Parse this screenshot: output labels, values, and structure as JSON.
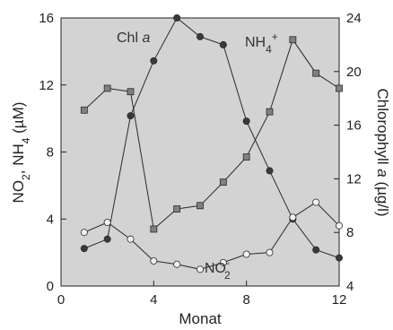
{
  "chart_data": {
    "type": "line",
    "x_axis": {
      "label": "Monat",
      "ticks": [
        0,
        4,
        8,
        12
      ],
      "range": [
        0,
        12
      ]
    },
    "y_left": {
      "label": "NO2, NH4 (µM)",
      "ticks": [
        0,
        4,
        8,
        12,
        16
      ],
      "range": [
        0,
        16
      ]
    },
    "y_right": {
      "label": "Chlorophyll a (µg/l)",
      "ticks": [
        4,
        8,
        12,
        16,
        20,
        24
      ],
      "range": [
        4,
        24
      ]
    },
    "grid": false,
    "background": "#d3d3d3",
    "annotations": {
      "chl": "Chl a",
      "nh4": "NH4+",
      "no2": "NO2-"
    },
    "series": [
      {
        "key": "nh4",
        "axis": "left",
        "marker": "square",
        "color": "#808080",
        "x": [
          1,
          2,
          3,
          4,
          5,
          6,
          7,
          8,
          9,
          10,
          11,
          12
        ],
        "y": [
          10.5,
          11.8,
          11.6,
          3.4,
          4.6,
          4.8,
          6.2,
          7.7,
          10.4,
          14.7,
          12.7,
          11.8
        ]
      },
      {
        "key": "chl",
        "axis": "right",
        "marker": "circle",
        "color": "#3a3a3a",
        "x": [
          1,
          2,
          3,
          4,
          5,
          6,
          7,
          8,
          9,
          10,
          11,
          12
        ],
        "y": [
          6.8,
          7.5,
          16.7,
          20.8,
          24.0,
          22.6,
          22.0,
          16.3,
          12.6,
          9.0,
          6.7,
          6.1
        ]
      },
      {
        "key": "no2",
        "axis": "left",
        "marker": "circle",
        "color": "#f2f2f2",
        "x": [
          1,
          2,
          3,
          4,
          5,
          6,
          7,
          8,
          9,
          10,
          11,
          12
        ],
        "y": [
          3.2,
          3.8,
          2.8,
          1.5,
          1.3,
          1.0,
          1.4,
          1.9,
          2.0,
          4.1,
          5.0,
          3.6
        ]
      }
    ]
  }
}
